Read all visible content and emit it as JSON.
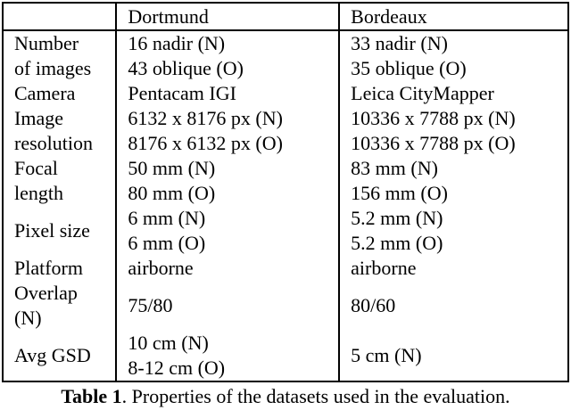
{
  "table": {
    "headers": [
      "",
      "Dortmund",
      "Bordeaux"
    ],
    "rows": [
      {
        "label": [
          "Number",
          "of images"
        ],
        "cells": [
          [
            "16 nadir (N)",
            "43 oblique (O)"
          ],
          [
            "33 nadir (N)",
            "35 oblique (O)"
          ]
        ]
      },
      {
        "label": [
          "Camera"
        ],
        "cells": [
          [
            "Pentacam IGI"
          ],
          [
            "Leica CityMapper"
          ]
        ]
      },
      {
        "label": [
          "Image",
          "resolution"
        ],
        "cells": [
          [
            "6132 x 8176 px (N)",
            "8176 x 6132 px (O)"
          ],
          [
            "10336 x 7788 px (N)",
            "10336 x 7788 px (O)"
          ]
        ]
      },
      {
        "label": [
          "Focal",
          "length"
        ],
        "cells": [
          [
            "50 mm (N)",
            "80 mm (O)"
          ],
          [
            "83 mm (N)",
            "156 mm (O)"
          ]
        ]
      },
      {
        "label": [
          "Pixel size"
        ],
        "cells": [
          [
            "6 mm (N)",
            "6 mm (O)"
          ],
          [
            "5.2 mm (N)",
            "5.2 mm (O)"
          ]
        ]
      },
      {
        "label": [
          "Platform"
        ],
        "cells": [
          [
            "airborne"
          ],
          [
            "airborne"
          ]
        ]
      },
      {
        "label": [
          "Overlap",
          "(N)"
        ],
        "cells": [
          [
            "75/80"
          ],
          [
            "80/60"
          ]
        ]
      },
      {
        "label": [
          "Avg GSD"
        ],
        "cells": [
          [
            "10 cm (N)",
            "8-12 cm (O)"
          ],
          [
            "5 cm (N)"
          ]
        ]
      }
    ]
  },
  "caption": {
    "label": "Table 1",
    "text": ". Properties of the datasets used in the evaluation."
  }
}
